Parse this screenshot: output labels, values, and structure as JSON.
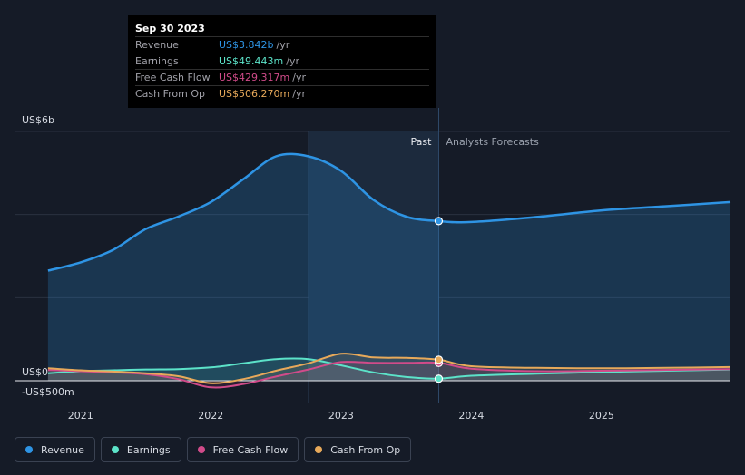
{
  "chart_data": {
    "type": "area",
    "y_axis": {
      "top_label": "US$6b",
      "zero_label": "US$0",
      "bottom_label": "-US$500m",
      "ylim": [
        -500,
        6000
      ],
      "unit": "US$m"
    },
    "x_ticks": [
      {
        "label": "2021",
        "x": 2021.0
      },
      {
        "label": "2022",
        "x": 2022.0
      },
      {
        "label": "2023",
        "x": 2023.0
      },
      {
        "label": "2024",
        "x": 2024.0
      },
      {
        "label": "2025",
        "x": 2025.0
      }
    ],
    "xlim": [
      2020.5,
      2025.99
    ],
    "past_start": 2022.75,
    "divider": 2023.75,
    "past_label": "Past",
    "forecast_label": "Analysts Forecasts",
    "series": [
      {
        "name": "Revenue",
        "color": "#2e94e4",
        "area": true,
        "points": [
          [
            2020.75,
            2650
          ],
          [
            2021.0,
            2850
          ],
          [
            2021.25,
            3150
          ],
          [
            2021.5,
            3650
          ],
          [
            2021.75,
            3950
          ],
          [
            2022.0,
            4300
          ],
          [
            2022.25,
            4850
          ],
          [
            2022.5,
            5400
          ],
          [
            2022.75,
            5400
          ],
          [
            2023.0,
            5050
          ],
          [
            2023.25,
            4350
          ],
          [
            2023.5,
            3950
          ],
          [
            2023.75,
            3842
          ],
          [
            2024.0,
            3820
          ],
          [
            2024.5,
            3940
          ],
          [
            2025.0,
            4100
          ],
          [
            2025.5,
            4200
          ],
          [
            2025.99,
            4300
          ]
        ]
      },
      {
        "name": "Earnings",
        "color": "#5ce3c9",
        "area": false,
        "points": [
          [
            2020.75,
            180
          ],
          [
            2021.0,
            230
          ],
          [
            2021.25,
            250
          ],
          [
            2021.5,
            270
          ],
          [
            2021.75,
            280
          ],
          [
            2022.0,
            320
          ],
          [
            2022.25,
            420
          ],
          [
            2022.5,
            520
          ],
          [
            2022.75,
            520
          ],
          [
            2023.0,
            370
          ],
          [
            2023.25,
            200
          ],
          [
            2023.5,
            90
          ],
          [
            2023.75,
            49.443
          ],
          [
            2024.0,
            120
          ],
          [
            2024.5,
            170
          ],
          [
            2025.0,
            210
          ],
          [
            2025.5,
            240
          ],
          [
            2025.99,
            270
          ]
        ]
      },
      {
        "name": "Free Cash Flow",
        "color": "#d14b8a",
        "area": false,
        "points": [
          [
            2020.75,
            260
          ],
          [
            2021.0,
            230
          ],
          [
            2021.25,
            200
          ],
          [
            2021.5,
            160
          ],
          [
            2021.75,
            40
          ],
          [
            2022.0,
            -160
          ],
          [
            2022.25,
            -80
          ],
          [
            2022.5,
            100
          ],
          [
            2022.75,
            270
          ],
          [
            2023.0,
            450
          ],
          [
            2023.25,
            430
          ],
          [
            2023.5,
            430
          ],
          [
            2023.75,
            429.317
          ],
          [
            2024.0,
            290
          ],
          [
            2024.5,
            230
          ],
          [
            2025.0,
            240
          ],
          [
            2025.5,
            260
          ],
          [
            2025.99,
            280
          ]
        ]
      },
      {
        "name": "Cash From Op",
        "color": "#e7a95a",
        "area": false,
        "points": [
          [
            2020.75,
            300
          ],
          [
            2021.0,
            250
          ],
          [
            2021.25,
            220
          ],
          [
            2021.5,
            180
          ],
          [
            2021.75,
            110
          ],
          [
            2022.0,
            -60
          ],
          [
            2022.25,
            40
          ],
          [
            2022.5,
            240
          ],
          [
            2022.75,
            420
          ],
          [
            2023.0,
            650
          ],
          [
            2023.25,
            560
          ],
          [
            2023.5,
            550
          ],
          [
            2023.75,
            506.27
          ],
          [
            2024.0,
            350
          ],
          [
            2024.5,
            310
          ],
          [
            2025.0,
            300
          ],
          [
            2025.5,
            310
          ],
          [
            2025.99,
            330
          ]
        ]
      }
    ]
  },
  "tooltip": {
    "date": "Sep 30 2023",
    "rows": [
      {
        "label": "Revenue",
        "value": "US$3.842b",
        "unit": "/yr",
        "color": "#2e94e4"
      },
      {
        "label": "Earnings",
        "value": "US$49.443m",
        "unit": "/yr",
        "color": "#5ce3c9"
      },
      {
        "label": "Free Cash Flow",
        "value": "US$429.317m",
        "unit": "/yr",
        "color": "#d14b8a"
      },
      {
        "label": "Cash From Op",
        "value": "US$506.270m",
        "unit": "/yr",
        "color": "#e7a95a"
      }
    ]
  },
  "legend": [
    {
      "label": "Revenue",
      "color": "#2e94e4"
    },
    {
      "label": "Earnings",
      "color": "#5ce3c9"
    },
    {
      "label": "Free Cash Flow",
      "color": "#d14b8a"
    },
    {
      "label": "Cash From Op",
      "color": "#e7a95a"
    }
  ]
}
